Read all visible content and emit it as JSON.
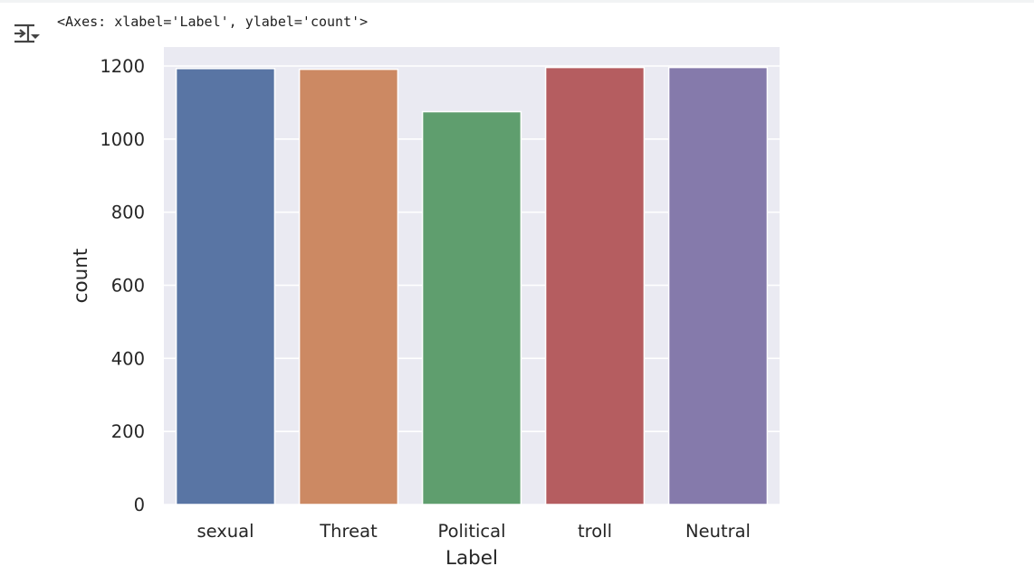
{
  "cell_output": {
    "text": "<Axes: xlabel='Label', ylabel='count'>",
    "toggle_icon": "output-toggle-icon"
  },
  "chart_data": {
    "type": "bar",
    "title": "",
    "xlabel": "Label",
    "ylabel": "count",
    "categories": [
      "sexual",
      "Threat",
      "Political",
      "troll",
      "Neutral"
    ],
    "values": [
      1193,
      1191,
      1075,
      1196,
      1196
    ],
    "colors": [
      "#5975a4",
      "#cc8963",
      "#5f9e6e",
      "#b55d60",
      "#857aab"
    ],
    "ylim": [
      0,
      1200
    ],
    "yticks": [
      "0",
      "200",
      "400",
      "600",
      "800",
      "1000",
      "1200"
    ],
    "grid": true,
    "background": "#eaeaf2",
    "legend": "none"
  }
}
